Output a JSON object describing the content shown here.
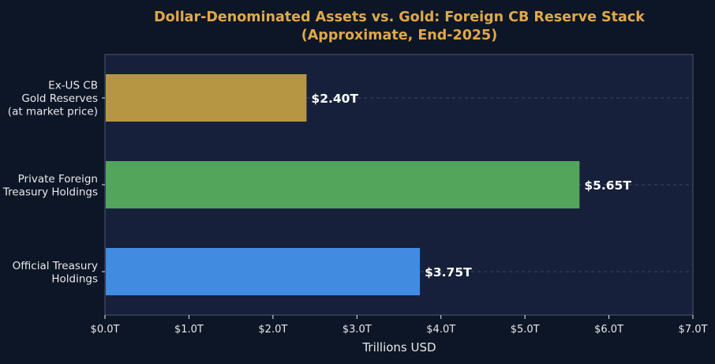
{
  "chart_data": {
    "type": "bar",
    "orientation": "horizontal",
    "title": "Dollar-Denominated Assets vs. Gold: Foreign CB Reserve Stack",
    "subtitle": "(Approximate, End-2025)",
    "xlabel": "Trillions USD",
    "ylabel": "",
    "xlim": [
      0,
      7
    ],
    "x_ticks": [
      {
        "value": 0,
        "label": "$0.0T"
      },
      {
        "value": 1,
        "label": "$1.0T"
      },
      {
        "value": 2,
        "label": "$2.0T"
      },
      {
        "value": 3,
        "label": "$3.0T"
      },
      {
        "value": 4,
        "label": "$4.0T"
      },
      {
        "value": 5,
        "label": "$5.0T"
      },
      {
        "value": 6,
        "label": "$6.0T"
      },
      {
        "value": 7,
        "label": "$7.0T"
      }
    ],
    "grid": "horizontal dashed at each category",
    "bars": [
      {
        "category": [
          "Ex-US CB",
          "Gold Reserves",
          "(at market price)"
        ],
        "value": 2.4,
        "label": "$2.40T",
        "color": "#b79643"
      },
      {
        "category": [
          "Private Foreign",
          "Treasury Holdings"
        ],
        "value": 5.65,
        "label": "$5.65T",
        "color": "#52a55a"
      },
      {
        "category": [
          "Official Treasury",
          "Holdings"
        ],
        "value": 3.75,
        "label": "$3.75T",
        "color": "#418be0"
      }
    ]
  },
  "colors": {
    "background": "#0d1626",
    "plot_background": "#17203a",
    "title": "#e0a84a",
    "text": "#e8e8ea",
    "axis": "#4a5870",
    "grid": "#3a465e"
  }
}
